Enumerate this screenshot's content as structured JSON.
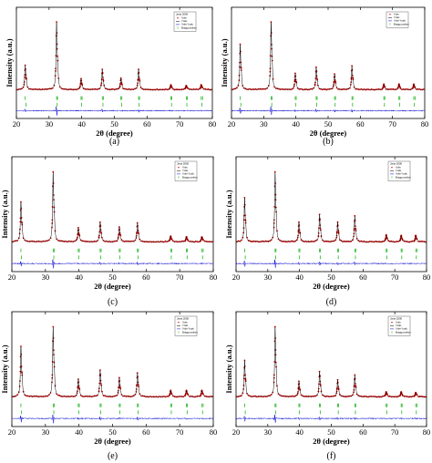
{
  "chart_data": [
    {
      "type": "line",
      "panel": "(a)",
      "xlabel": "2θ (degree)",
      "ylabel": "Intensity (a.u.)",
      "xlim": [
        20,
        80
      ],
      "xticks": [
        20,
        30,
        40,
        50,
        60,
        70,
        80
      ],
      "legend": {
        "title": "Jana 2000",
        "entries": [
          "Yobs",
          "Ycalc",
          "Yobs-Ycalc",
          "Bragg position"
        ],
        "placement": "top-right"
      },
      "series": [
        {
          "name": "Yobs",
          "color": "#cc0000"
        },
        {
          "name": "Ycalc",
          "color": "#000000"
        },
        {
          "name": "Yobs-Ycalc",
          "color": "#0000cc"
        },
        {
          "name": "Bragg position",
          "color": "#00aa00"
        }
      ],
      "peaks": [
        {
          "x": 22.7,
          "y": 0.36
        },
        {
          "x": 32.3,
          "y": 1.0
        },
        {
          "x": 39.8,
          "y": 0.16
        },
        {
          "x": 46.3,
          "y": 0.3
        },
        {
          "x": 52.0,
          "y": 0.17
        },
        {
          "x": 57.4,
          "y": 0.3
        },
        {
          "x": 67.3,
          "y": 0.07
        },
        {
          "x": 72.0,
          "y": 0.06
        },
        {
          "x": 76.6,
          "y": 0.07
        }
      ]
    },
    {
      "type": "line",
      "panel": "(b)",
      "xlabel": "2θ (degree)",
      "ylabel": "Intensity (a.u.)",
      "xlim": [
        20,
        80
      ],
      "xticks": [
        20,
        30,
        40,
        50,
        60,
        70,
        80
      ],
      "legend": {
        "entries": [
          "Yobs",
          "Ycalc",
          "Yobs-Ycalc",
          "Bragg position"
        ],
        "placement": "top-right"
      },
      "series": [
        {
          "name": "Yobs",
          "color": "#cc0000"
        },
        {
          "name": "Ycalc",
          "color": "#000000"
        },
        {
          "name": "Yobs-Ycalc",
          "color": "#0000cc"
        },
        {
          "name": "Bragg position",
          "color": "#00aa00"
        }
      ],
      "peaks": [
        {
          "x": 22.7,
          "y": 0.67
        },
        {
          "x": 32.3,
          "y": 1.0
        },
        {
          "x": 39.8,
          "y": 0.24
        },
        {
          "x": 46.3,
          "y": 0.33
        },
        {
          "x": 52.0,
          "y": 0.23
        },
        {
          "x": 57.4,
          "y": 0.35
        },
        {
          "x": 67.3,
          "y": 0.08
        },
        {
          "x": 72.0,
          "y": 0.08
        },
        {
          "x": 76.6,
          "y": 0.08
        }
      ]
    },
    {
      "type": "line",
      "panel": "(c)",
      "xlabel": "2θ (degree)",
      "ylabel": "Intensity (a.u.)",
      "xlim": [
        20,
        80
      ],
      "xticks": [
        20,
        30,
        40,
        50,
        60,
        70,
        80
      ],
      "legend": {
        "title": "Jana 2000",
        "entries": [
          "Yobs",
          "Ycalc",
          "Yobs-Ycalc",
          "Bragg position"
        ],
        "placement": "top-right"
      },
      "series": [
        {
          "name": "Yobs",
          "color": "#cc0000"
        },
        {
          "name": "Ycalc",
          "color": "#000000"
        },
        {
          "name": "Yobs-Ycalc",
          "color": "#0000cc"
        },
        {
          "name": "Bragg position",
          "color": "#00aa00"
        }
      ],
      "peaks": [
        {
          "x": 22.7,
          "y": 0.57
        },
        {
          "x": 32.3,
          "y": 1.0
        },
        {
          "x": 39.8,
          "y": 0.2
        },
        {
          "x": 46.3,
          "y": 0.28
        },
        {
          "x": 52.0,
          "y": 0.21
        },
        {
          "x": 57.4,
          "y": 0.27
        },
        {
          "x": 67.3,
          "y": 0.08
        },
        {
          "x": 72.0,
          "y": 0.07
        },
        {
          "x": 76.6,
          "y": 0.07
        }
      ]
    },
    {
      "type": "line",
      "panel": "(d)",
      "xlabel": "2θ (degree)",
      "ylabel": "Intensity (a.u.)",
      "xlim": [
        20,
        80
      ],
      "xticks": [
        20,
        30,
        40,
        50,
        60,
        70,
        80
      ],
      "legend": {
        "title": "Jana 2000",
        "entries": [
          "Yobs",
          "Ycalc",
          "Yobs-Ycalc",
          "Bragg position"
        ],
        "placement": "top-right"
      },
      "series": [
        {
          "name": "Yobs",
          "color": "#cc0000"
        },
        {
          "name": "Ycalc",
          "color": "#000000"
        },
        {
          "name": "Yobs-Ycalc",
          "color": "#0000cc"
        },
        {
          "name": "Bragg position",
          "color": "#00aa00"
        }
      ],
      "peaks": [
        {
          "x": 22.7,
          "y": 0.63
        },
        {
          "x": 32.3,
          "y": 1.0
        },
        {
          "x": 39.8,
          "y": 0.28
        },
        {
          "x": 46.3,
          "y": 0.39
        },
        {
          "x": 52.0,
          "y": 0.28
        },
        {
          "x": 57.4,
          "y": 0.37
        },
        {
          "x": 67.3,
          "y": 0.1
        },
        {
          "x": 72.0,
          "y": 0.09
        },
        {
          "x": 76.6,
          "y": 0.09
        }
      ]
    },
    {
      "type": "line",
      "panel": "(e)",
      "xlabel": "2θ (degree)",
      "ylabel": "Intensity (a.u.)",
      "xlim": [
        20,
        80
      ],
      "xticks": [
        20,
        30,
        40,
        50,
        60,
        70,
        80
      ],
      "legend": {
        "title": "Jana 2000",
        "entries": [
          "Yobs",
          "Ycalc",
          "Yobs-Ycalc",
          "Bragg position"
        ],
        "placement": "top-right"
      },
      "series": [
        {
          "name": "Yobs",
          "color": "#cc0000"
        },
        {
          "name": "Ycalc",
          "color": "#000000"
        },
        {
          "name": "Yobs-Ycalc",
          "color": "#0000cc"
        },
        {
          "name": "Bragg position",
          "color": "#00aa00"
        }
      ],
      "peaks": [
        {
          "x": 22.7,
          "y": 0.72
        },
        {
          "x": 32.3,
          "y": 1.0
        },
        {
          "x": 39.8,
          "y": 0.25
        },
        {
          "x": 46.3,
          "y": 0.38
        },
        {
          "x": 52.0,
          "y": 0.27
        },
        {
          "x": 57.4,
          "y": 0.34
        },
        {
          "x": 67.3,
          "y": 0.09
        },
        {
          "x": 72.0,
          "y": 0.09
        },
        {
          "x": 76.6,
          "y": 0.09
        }
      ]
    },
    {
      "type": "line",
      "panel": "(f)",
      "xlabel": "2θ (degree)",
      "ylabel": "Intensity (a.u.)",
      "xlim": [
        20,
        80
      ],
      "xticks": [
        20,
        30,
        40,
        50,
        60,
        70,
        80
      ],
      "legend": {
        "title": "Jana 2000",
        "entries": [
          "Yobs",
          "Ycalc",
          "Yobs-Ycalc",
          "Bragg position"
        ],
        "placement": "top-right"
      },
      "series": [
        {
          "name": "Yobs",
          "color": "#cc0000"
        },
        {
          "name": "Ycalc",
          "color": "#000000"
        },
        {
          "name": "Yobs-Ycalc",
          "color": "#0000cc"
        },
        {
          "name": "Bragg position",
          "color": "#00aa00"
        }
      ],
      "peaks": [
        {
          "x": 22.7,
          "y": 0.52
        },
        {
          "x": 32.3,
          "y": 1.0
        },
        {
          "x": 39.8,
          "y": 0.22
        },
        {
          "x": 46.3,
          "y": 0.36
        },
        {
          "x": 52.0,
          "y": 0.24
        },
        {
          "x": 57.4,
          "y": 0.31
        },
        {
          "x": 67.3,
          "y": 0.07
        },
        {
          "x": 72.0,
          "y": 0.07
        },
        {
          "x": 76.6,
          "y": 0.06
        }
      ]
    }
  ]
}
